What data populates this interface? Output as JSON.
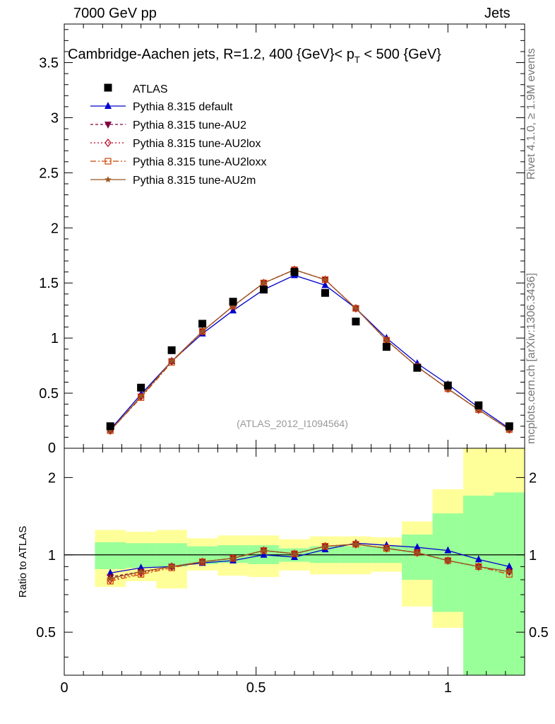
{
  "header": {
    "left": "7000 GeV pp",
    "right": "Jets"
  },
  "side_text": {
    "rivet": "Rivet 4.1.0, ≥ 1.9M events",
    "mcplots": "mcplots.cern.ch [arXiv:1306.3436]"
  },
  "chart_data": {
    "type": "line",
    "title": "Cambridge-Aachen jets, R=1.2,  400 {GeV}< p_T < 500 {GeV}",
    "title_main": "Cambridge-Aachen jets, R=1.2,  400 {GeV}< p",
    "title_sub": "T",
    "title_tail": " < 500 {GeV}",
    "watermark": "(ATLAS_2012_I1094564)",
    "x": [
      0.12,
      0.2,
      0.28,
      0.36,
      0.44,
      0.52,
      0.6,
      0.68,
      0.76,
      0.84,
      0.92,
      1.0,
      1.08,
      1.16
    ],
    "xlim": [
      0,
      1.2
    ],
    "main_ylim": [
      0,
      3.85
    ],
    "main_yticks": [
      0.5,
      1,
      1.5,
      2,
      2.5,
      3,
      3.5
    ],
    "main_ytick_labels": [
      "0.5",
      "1",
      "1.5",
      "2",
      "2.5",
      "3",
      "3.5"
    ],
    "main_bottom_label": "0",
    "ratio_ylim": [
      0.34,
      2.6
    ],
    "ratio_yticks": [
      0.5,
      1,
      2
    ],
    "ratio_ytick_labels": [
      "0.5",
      "1",
      "2"
    ],
    "ratio_ylabel": "Ratio to ATLAS",
    "xticks": [
      0,
      0.5,
      1
    ],
    "xtick_labels": [
      "0",
      "0.5",
      "1"
    ],
    "data": {
      "name": "ATLAS",
      "values": [
        0.2,
        0.55,
        0.89,
        1.13,
        1.33,
        1.44,
        1.6,
        1.41,
        1.15,
        0.92,
        0.73,
        0.57,
        0.39,
        0.2
      ],
      "band_edges": [
        0.08,
        0.16,
        0.24,
        0.32,
        0.4,
        0.48,
        0.56,
        0.64,
        0.72,
        0.8,
        0.88,
        0.96,
        1.04,
        1.12,
        1.2
      ],
      "stat_band_low": [
        0.88,
        0.89,
        0.9,
        0.92,
        0.93,
        0.92,
        0.94,
        0.93,
        0.93,
        0.93,
        0.8,
        0.6,
        0.34,
        0.34
      ],
      "stat_band_high": [
        1.12,
        1.11,
        1.11,
        1.08,
        1.09,
        1.09,
        1.06,
        1.08,
        1.08,
        1.08,
        1.2,
        1.45,
        1.7,
        1.75
      ],
      "tot_band_low": [
        0.75,
        0.79,
        0.74,
        0.87,
        0.83,
        0.82,
        0.87,
        0.84,
        0.84,
        0.86,
        0.63,
        0.52,
        0.34,
        0.34
      ],
      "tot_band_high": [
        1.25,
        1.23,
        1.25,
        1.16,
        1.19,
        1.19,
        1.15,
        1.18,
        1.18,
        1.17,
        1.35,
        1.8,
        2.6,
        2.6
      ]
    },
    "series": [
      {
        "name": "Pythia 8.315 default",
        "color": "#0000cc",
        "dash": "",
        "marker": "triangle",
        "values": [
          0.17,
          0.49,
          0.79,
          1.04,
          1.25,
          1.44,
          1.57,
          1.48,
          1.27,
          1.0,
          0.77,
          0.58,
          0.37,
          0.18
        ],
        "ratio": [
          0.85,
          0.89,
          0.9,
          0.93,
          0.95,
          1.0,
          0.98,
          1.05,
          1.11,
          1.09,
          1.07,
          1.04,
          0.96,
          0.9
        ]
      },
      {
        "name": "Pythia 8.315 tune-AU2",
        "color": "#800040",
        "dash": "4,3",
        "marker": "tridown",
        "values": [
          0.16,
          0.47,
          0.79,
          1.06,
          1.29,
          1.5,
          1.62,
          1.53,
          1.27,
          0.98,
          0.74,
          0.54,
          0.35,
          0.17
        ],
        "ratio": [
          0.82,
          0.86,
          0.9,
          0.94,
          0.97,
          1.04,
          1.01,
          1.08,
          1.1,
          1.06,
          1.02,
          0.95,
          0.9,
          0.86
        ]
      },
      {
        "name": "Pythia 8.315 tune-AU2lox",
        "color": "#c00020",
        "dash": "2,3",
        "marker": "diamond",
        "values": [
          0.16,
          0.47,
          0.79,
          1.06,
          1.29,
          1.5,
          1.62,
          1.53,
          1.27,
          0.98,
          0.74,
          0.54,
          0.35,
          0.17
        ],
        "ratio": [
          0.8,
          0.85,
          0.9,
          0.94,
          0.97,
          1.04,
          1.01,
          1.08,
          1.1,
          1.06,
          1.02,
          0.95,
          0.9,
          0.86
        ]
      },
      {
        "name": "Pythia 8.315 tune-AU2loxx",
        "color": "#cc4400",
        "dash": "8,3,2,3",
        "marker": "square",
        "values": [
          0.16,
          0.46,
          0.78,
          1.06,
          1.29,
          1.5,
          1.62,
          1.53,
          1.27,
          0.98,
          0.74,
          0.54,
          0.35,
          0.17
        ],
        "ratio": [
          0.79,
          0.84,
          0.89,
          0.94,
          0.97,
          1.04,
          1.01,
          1.08,
          1.1,
          1.06,
          1.02,
          0.95,
          0.9,
          0.84
        ]
      },
      {
        "name": "Pythia 8.315 tune-AU2m",
        "color": "#995522",
        "dash": "",
        "marker": "star",
        "values": [
          0.16,
          0.47,
          0.79,
          1.06,
          1.29,
          1.5,
          1.62,
          1.53,
          1.27,
          0.98,
          0.74,
          0.54,
          0.35,
          0.17
        ],
        "ratio": [
          0.81,
          0.86,
          0.9,
          0.94,
          0.97,
          1.04,
          1.01,
          1.08,
          1.1,
          1.06,
          1.02,
          0.95,
          0.9,
          0.86
        ]
      }
    ]
  }
}
